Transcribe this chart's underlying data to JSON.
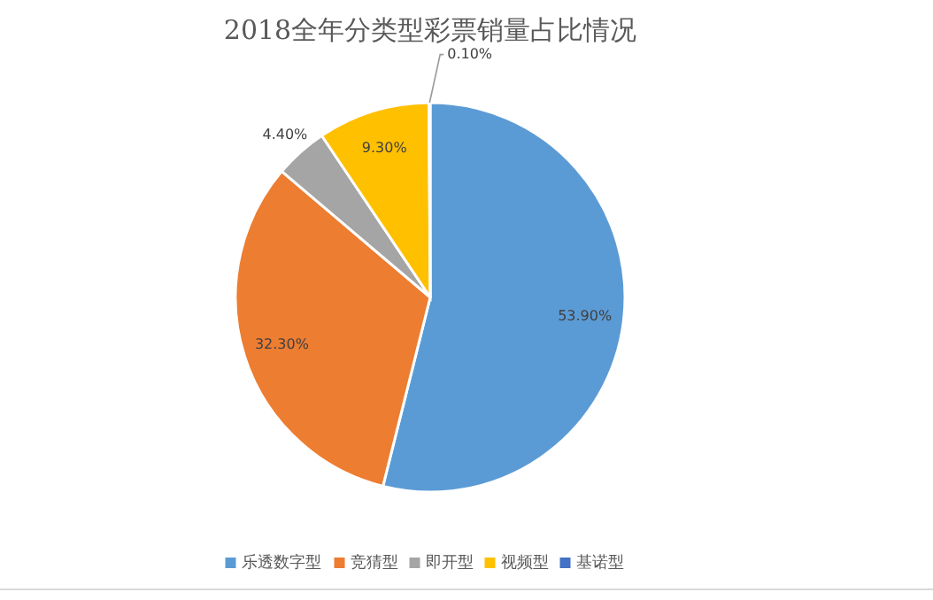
{
  "chart_data": {
    "type": "pie",
    "title": "2018全年分类型彩票销量占比情况",
    "categories": [
      "乐透数字型",
      "竞猜型",
      "即开型",
      "视频型",
      "基诺型"
    ],
    "values": [
      53.9,
      32.3,
      4.4,
      9.3,
      0.1
    ],
    "colors": [
      "#5b9bd5",
      "#ed7d31",
      "#a5a5a5",
      "#ffc000",
      "#4472c4"
    ],
    "value_labels": [
      "53.90%",
      "32.30%",
      "4.40%",
      "9.30%",
      "0.10%"
    ],
    "legend": "bottom"
  }
}
